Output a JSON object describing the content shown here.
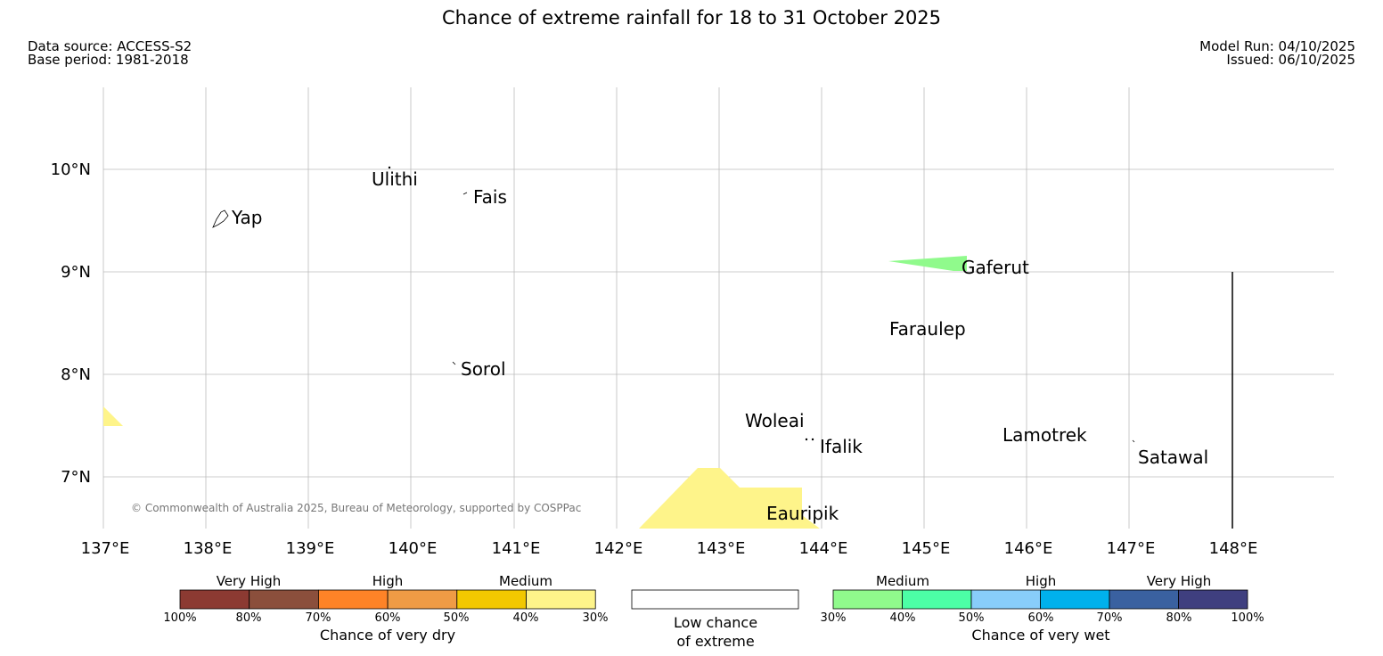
{
  "header": {
    "title": "Chance of extreme rainfall for 18 to 31 October 2025",
    "data_source": "Data source: ACCESS-S2",
    "base_period": "Base period: 1981-2018",
    "model_run": "Model Run: 04/10/2025",
    "issued": "Issued: 06/10/2025"
  },
  "map": {
    "lon_ticks": [
      "137°E",
      "138°E",
      "139°E",
      "140°E",
      "141°E",
      "142°E",
      "143°E",
      "144°E",
      "145°E",
      "146°E",
      "147°E",
      "148°E"
    ],
    "lat_ticks": [
      "10°N",
      "9°N",
      "8°N",
      "7°N"
    ],
    "copyright": "© Commonwealth of Australia 2025, Bureau of Meteorology, supported by COSPPac",
    "places": [
      "Yap",
      "Ulithi",
      "Fais",
      "Sorol",
      "Gaferut",
      "Faraulep",
      "Woleai",
      "Ifalik",
      "Eauripik",
      "Lamotrek",
      "Satawal"
    ]
  },
  "legend": {
    "dry": {
      "groups": [
        "Very High",
        "High",
        "Medium"
      ],
      "ticks": [
        "100%",
        "80%",
        "70%",
        "60%",
        "50%",
        "40%",
        "30%"
      ],
      "colors": [
        "#8c3a32",
        "#8b4f3c",
        "#fe8327",
        "#ef9b45",
        "#f2c800",
        "#fef48a"
      ],
      "label": "Chance of very dry"
    },
    "low": {
      "label_line1": "Low chance",
      "label_line2": "of extreme"
    },
    "wet": {
      "groups": [
        "Medium",
        "High",
        "Very High"
      ],
      "ticks": [
        "30%",
        "40%",
        "50%",
        "60%",
        "70%",
        "80%",
        "100%"
      ],
      "colors": [
        "#90fa8c",
        "#4cffa6",
        "#88cdfa",
        "#00b1ec",
        "#3a61a0",
        "#3f3f7f"
      ],
      "label": "Chance of very wet"
    }
  },
  "colors": {
    "medium_dry": "#fef48a",
    "medium_wet": "#90fa8c",
    "grid": "#bbbbbb"
  }
}
